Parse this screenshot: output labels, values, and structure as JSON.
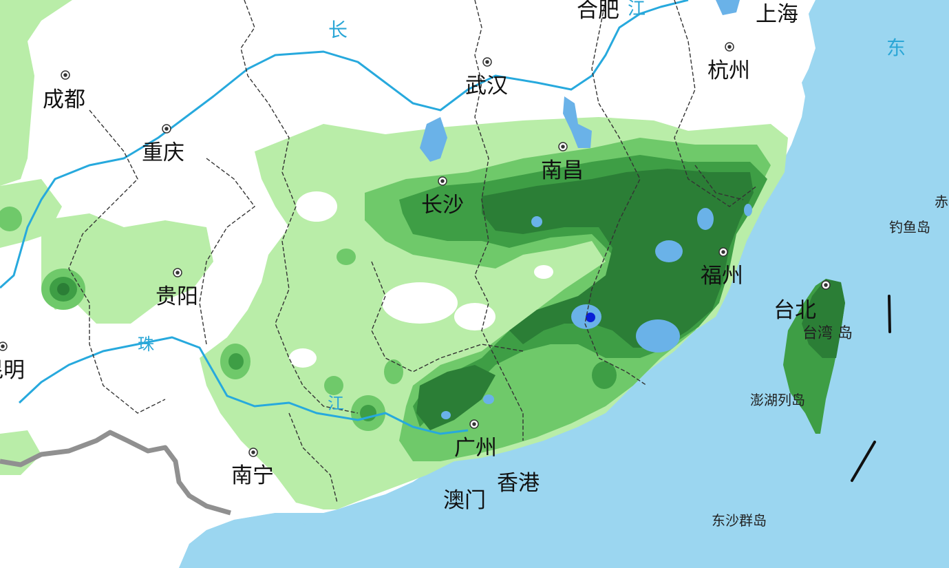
{
  "map": {
    "colors": {
      "land": "#ffffff",
      "sea": "#9bd6f0",
      "rain_light": "#b9eda8",
      "rain_moderate": "#6fc96a",
      "rain_heavy": "#3e9e45",
      "rain_very_heavy": "#2b7e36",
      "rain_rainstorm": "#6ab2e8",
      "rain_extreme": "#0a1fd6",
      "river": "#27a9dd",
      "border": "#333333",
      "national_border": "#909090",
      "nine_dash_line": "#111111"
    },
    "cities": [
      {
        "id": "chengdu",
        "name": "成都"
      },
      {
        "id": "chongqing",
        "name": "重庆"
      },
      {
        "id": "guiyang",
        "name": "贵阳"
      },
      {
        "id": "kunming",
        "name": "昆明"
      },
      {
        "id": "nanning",
        "name": "南宁"
      },
      {
        "id": "guangzhou",
        "name": "广州"
      },
      {
        "id": "xianggang",
        "name": "香港"
      },
      {
        "id": "aomen",
        "name": "澳门"
      },
      {
        "id": "changsha",
        "name": "长沙"
      },
      {
        "id": "wuhan",
        "name": "武汉"
      },
      {
        "id": "nanchang",
        "name": "南昌"
      },
      {
        "id": "hefei",
        "name": "合肥"
      },
      {
        "id": "hangzhou",
        "name": "杭州"
      },
      {
        "id": "shanghai",
        "name": "上海"
      },
      {
        "id": "fuzhou",
        "name": "福州"
      },
      {
        "id": "taibei",
        "name": "台北"
      }
    ],
    "islands": [
      {
        "id": "taiwan",
        "name": "台湾  岛"
      },
      {
        "id": "penghu",
        "name": "澎湖列岛"
      },
      {
        "id": "diaoyu",
        "name": "钓鱼岛"
      },
      {
        "id": "chiwei",
        "name": "赤"
      },
      {
        "id": "dongsha",
        "name": "东沙群岛"
      }
    ],
    "rivers": [
      {
        "id": "chang-char",
        "text": "长"
      },
      {
        "id": "jiang-char-yangtze",
        "text": "江"
      },
      {
        "id": "zhu-char",
        "text": "珠"
      },
      {
        "id": "jiang-char-pearl",
        "text": "江"
      }
    ],
    "seas": [
      {
        "id": "dong-char",
        "text": "东"
      }
    ]
  }
}
